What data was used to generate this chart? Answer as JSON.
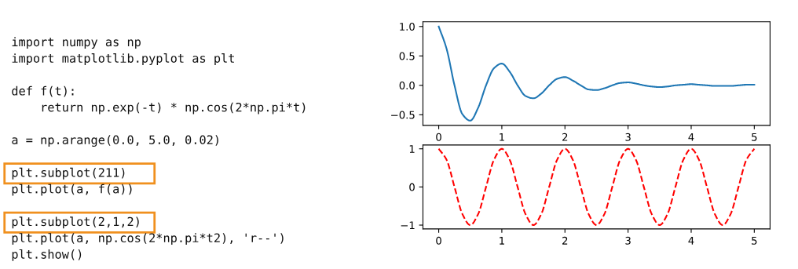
{
  "chart_data": [
    {
      "type": "other",
      "annotations": [
        "import numpy as np",
        "import matplotlib.pyplot as plt",
        "def f(t):",
        "    return np.exp(-t) * np.cos(2*np.pi*t)",
        "a = np.arange(0.0, 5.0, 0.02)",
        "plt.subplot(211)",
        "plt.plot(a, f(a))",
        "plt.subplot(2,1,2)",
        "plt.plot(a, np.cos(2*np.pi*t2), 'r--')",
        "plt.show()"
      ]
    },
    {
      "type": "line",
      "x": [
        0,
        0.125,
        0.25,
        0.375,
        0.5,
        0.625,
        0.75,
        0.875,
        1,
        1.125,
        1.25,
        1.375,
        1.5,
        1.625,
        1.75,
        1.875,
        2,
        2.125,
        2.25,
        2.375,
        2.5,
        2.625,
        2.75,
        2.875,
        3,
        3.125,
        3.25,
        3.375,
        3.5,
        3.625,
        3.75,
        3.875,
        4,
        4.125,
        4.25,
        4.375,
        4.5,
        4.625,
        4.75,
        4.875,
        5
      ],
      "series": [
        {
          "color": "#1f77b4",
          "values": [
            1,
            0.62,
            0,
            -0.49,
            -0.6,
            -0.38,
            0,
            0.29,
            0.37,
            0.23,
            0,
            -0.18,
            -0.22,
            -0.14,
            0,
            0.11,
            0.14,
            0.08,
            0,
            -0.07,
            -0.08,
            -0.05,
            0,
            0.04,
            0.05,
            0.03,
            0,
            -0.02,
            -0.03,
            -0.02,
            0,
            0.01,
            0.02,
            0.01,
            0,
            -0.01,
            -0.01,
            -0.01,
            0,
            0.01,
            0.01
          ]
        }
      ],
      "xlim": [
        -0.25,
        5.25
      ],
      "ylim": [
        -0.68,
        1.08
      ],
      "xticks": [
        0,
        1,
        2,
        3,
        4,
        5
      ],
      "yticks": [
        {
          "value": -0.5,
          "label": "−0.5"
        },
        {
          "value": 0,
          "label": "0.0"
        },
        {
          "value": 0.5,
          "label": "0.5"
        },
        {
          "value": 1,
          "label": "1.0"
        }
      ],
      "grid": false,
      "line_style": "solid"
    },
    {
      "type": "line",
      "x": [
        0,
        0.125,
        0.25,
        0.375,
        0.5,
        0.625,
        0.75,
        0.875,
        1,
        1.125,
        1.25,
        1.375,
        1.5,
        1.625,
        1.75,
        1.875,
        2,
        2.125,
        2.25,
        2.375,
        2.5,
        2.625,
        2.75,
        2.875,
        3,
        3.125,
        3.25,
        3.375,
        3.5,
        3.625,
        3.75,
        3.875,
        4,
        4.125,
        4.25,
        4.375,
        4.5,
        4.625,
        4.75,
        4.875,
        5
      ],
      "series": [
        {
          "color": "#ff0000",
          "values": [
            1,
            0.71,
            0,
            -0.71,
            -1,
            -0.71,
            0,
            0.71,
            1,
            0.71,
            0,
            -0.71,
            -1,
            -0.71,
            0,
            0.71,
            1,
            0.71,
            0,
            -0.71,
            -1,
            -0.71,
            0,
            0.71,
            1,
            0.71,
            0,
            -0.71,
            -1,
            -0.71,
            0,
            0.71,
            1,
            0.71,
            0,
            -0.71,
            -1,
            -0.71,
            0,
            0.71,
            1
          ]
        }
      ],
      "xlim": [
        -0.25,
        5.25
      ],
      "ylim": [
        -1.1,
        1.1
      ],
      "xticks": [
        0,
        1,
        2,
        3,
        4,
        5
      ],
      "yticks": [
        {
          "value": -1,
          "label": "−1"
        },
        0,
        1
      ],
      "grid": false,
      "line_style": "dashed"
    }
  ]
}
